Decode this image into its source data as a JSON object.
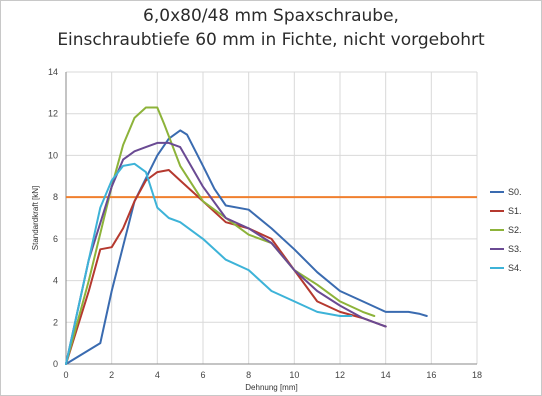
{
  "chart_data": {
    "type": "line",
    "title": "6,0x80/48 mm Spaxschraube,",
    "subtitle": "Einschraubtiefe 60 mm in Fichte, nicht vorgebohrt",
    "xlabel": "Dehnung [mm]",
    "ylabel": "Standardkraft [kN]",
    "xlim": [
      0,
      18
    ],
    "ylim": [
      0,
      14
    ],
    "x_ticks": [
      0,
      2,
      4,
      6,
      8,
      10,
      12,
      14,
      16,
      18
    ],
    "y_ticks": [
      0,
      2,
      4,
      6,
      8,
      10,
      12,
      14
    ],
    "grid": true,
    "legend_position": "right",
    "reference_line": {
      "y": 8,
      "color": "#f07f2e"
    },
    "series": [
      {
        "name": "S0.",
        "color": "#3a6bb0",
        "x": [
          0,
          1.5,
          2,
          3,
          4,
          4.5,
          5,
          5.3,
          6,
          6.5,
          7,
          8,
          9,
          10,
          11,
          12,
          13,
          14,
          15,
          15.5,
          15.8
        ],
        "y": [
          0,
          1.0,
          3.5,
          7.8,
          10,
          10.8,
          11.2,
          11,
          9.5,
          8.4,
          7.6,
          7.4,
          6.5,
          5.5,
          4.4,
          3.5,
          3.0,
          2.5,
          2.5,
          2.4,
          2.3
        ]
      },
      {
        "name": "S1.",
        "color": "#b5392f",
        "x": [
          0,
          1,
          1.5,
          2,
          2.5,
          3,
          3.5,
          4,
          4.5,
          5,
          6,
          7,
          8,
          9,
          10,
          11,
          12,
          13,
          14
        ],
        "y": [
          0,
          3.5,
          5.5,
          5.6,
          6.5,
          7.8,
          8.8,
          9.2,
          9.3,
          8.8,
          7.8,
          6.8,
          6.5,
          6.0,
          4.5,
          3.0,
          2.5,
          2.2,
          1.8
        ]
      },
      {
        "name": "S2.",
        "color": "#8db33a",
        "x": [
          0,
          1,
          2,
          2.5,
          3,
          3.5,
          4,
          4.3,
          5,
          6,
          7,
          8,
          9,
          10,
          11,
          12,
          13,
          13.5
        ],
        "y": [
          0,
          4,
          8.5,
          10.5,
          11.8,
          12.3,
          12.3,
          11.5,
          9.5,
          7.8,
          7.0,
          6.2,
          5.8,
          4.5,
          3.8,
          3.0,
          2.5,
          2.3
        ]
      },
      {
        "name": "S3.",
        "color": "#6a4a93",
        "x": [
          0,
          1,
          2,
          2.5,
          3,
          3.5,
          4,
          4.5,
          5,
          6,
          7,
          8,
          9,
          10,
          11,
          12,
          13,
          14
        ],
        "y": [
          0,
          5,
          8.5,
          9.8,
          10.2,
          10.4,
          10.6,
          10.6,
          10.4,
          8.5,
          7.0,
          6.5,
          5.8,
          4.5,
          3.5,
          2.8,
          2.2,
          1.8
        ]
      },
      {
        "name": "S4.",
        "color": "#3db3d8",
        "x": [
          0,
          1,
          1.5,
          2,
          2.5,
          3,
          3.5,
          4,
          4.5,
          5,
          6,
          7,
          8,
          9,
          10,
          11,
          12,
          12.5
        ],
        "y": [
          0,
          5,
          7.5,
          8.8,
          9.5,
          9.6,
          9.2,
          7.5,
          7.0,
          6.8,
          6.0,
          5.0,
          4.5,
          3.5,
          3.0,
          2.5,
          2.3,
          2.3
        ]
      }
    ]
  }
}
